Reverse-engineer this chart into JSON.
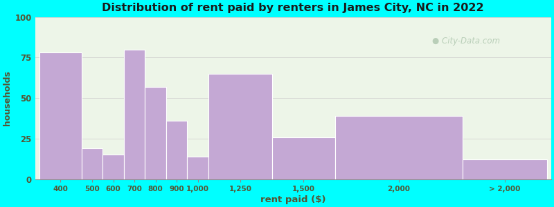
{
  "title": "Distribution of rent paid by renters in James City, NC in 2022",
  "xlabel": "rent paid ($)",
  "ylabel": "households",
  "ylim": [
    0,
    100
  ],
  "yticks": [
    0,
    25,
    50,
    75,
    100
  ],
  "background_color": "#00FFFF",
  "plot_bg_color_top": "#e8f5e2",
  "plot_bg_color_bottom": "#f5f0fa",
  "bar_color": "#c4a8d4",
  "bar_edge_color": "#ffffff",
  "title_color": "#1a1a1a",
  "label_color": "#555533",
  "tick_color": "#555533",
  "watermark": "City-Data.com",
  "bar_heights": [
    78,
    19,
    15,
    80,
    57,
    36,
    14,
    65,
    26,
    39,
    12
  ],
  "bar_edges": [
    0,
    100,
    150,
    200,
    250,
    300,
    350,
    400,
    550,
    700,
    1000,
    1200
  ],
  "xtick_labels": [
    "400",
    "500",
    "600",
    "700",
    "800",
    "900",
    "1,000",
    "1,250",
    "1,500",
    "2,000",
    "> 2,000"
  ],
  "xtick_positions": [
    50,
    125,
    175,
    225,
    275,
    325,
    375,
    475,
    625,
    850,
    1100
  ]
}
